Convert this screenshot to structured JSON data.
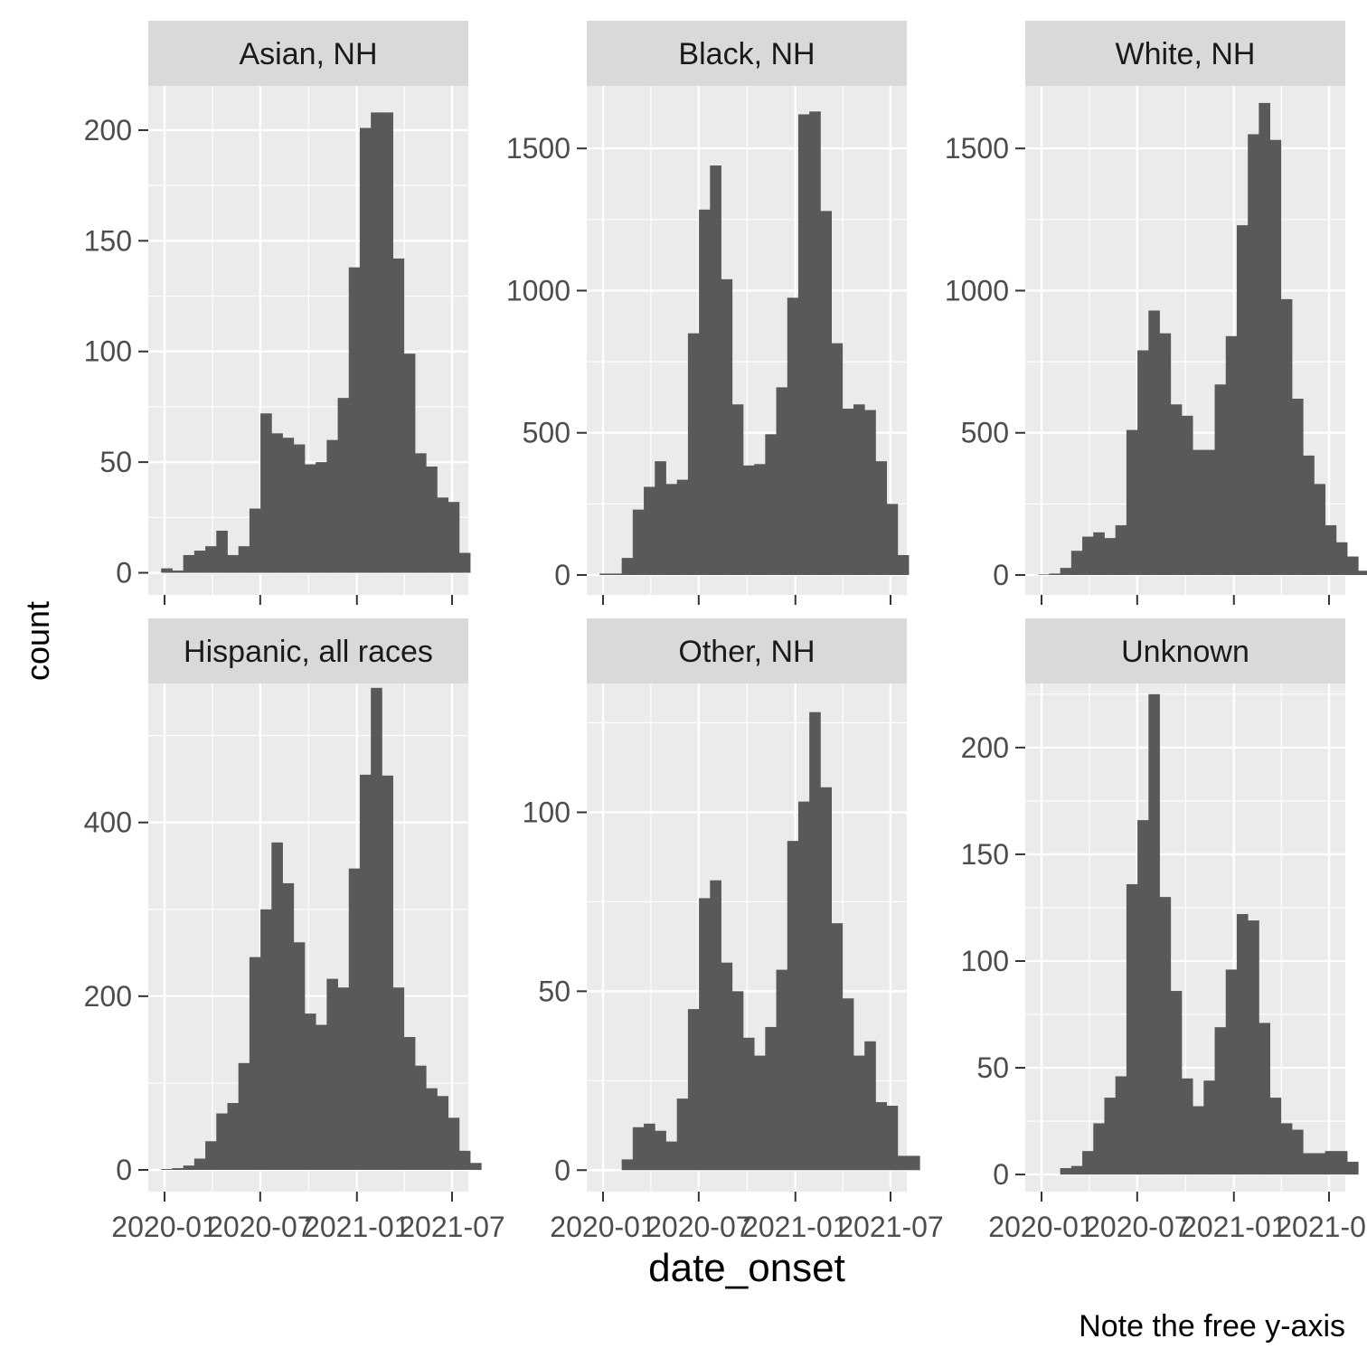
{
  "chart_data": {
    "type": "bar",
    "xlabel": "date_onset",
    "ylabel": "count",
    "caption": "Note the free y-axis",
    "x_tick_labels": [
      "2020-01",
      "2020-07",
      "2021-01",
      "2021-07"
    ],
    "x_ticks": [
      "2020-01-01",
      "2020-07-01",
      "2021-01-01",
      "2021-07-01"
    ],
    "x_range": [
      "2019-12-01",
      "2021-08-01"
    ],
    "bin_width_days": 21,
    "first_bin_center": "2020-01-05",
    "colors": {
      "bar": "#595959",
      "panel": "#ebebeb",
      "strip": "#d9d9d9",
      "grid": "#ffffff",
      "tick_text": "#4d4d4d"
    },
    "panels": [
      {
        "label": "Asian, NH",
        "y_range": [
          -10,
          220
        ],
        "y_ticks": [
          0,
          50,
          100,
          150,
          200
        ],
        "counts": [
          2,
          1,
          8,
          10,
          12,
          19,
          8,
          12,
          29,
          72,
          63,
          61,
          58,
          49,
          50,
          60,
          79,
          138,
          201,
          208,
          208,
          142,
          99,
          54,
          48,
          34,
          32,
          9
        ]
      },
      {
        "label": "Black, NH",
        "y_range": [
          -70,
          1720
        ],
        "y_ticks": [
          0,
          500,
          1000,
          1500
        ],
        "counts": [
          5,
          5,
          60,
          230,
          310,
          400,
          320,
          335,
          850,
          1285,
          1440,
          1040,
          600,
          385,
          390,
          495,
          660,
          975,
          1620,
          1630,
          1280,
          815,
          585,
          600,
          580,
          400,
          250,
          70
        ]
      },
      {
        "label": "White, NH",
        "y_range": [
          -70,
          1720
        ],
        "y_ticks": [
          0,
          500,
          1000,
          1500
        ],
        "counts": [
          2,
          5,
          25,
          85,
          135,
          150,
          130,
          175,
          510,
          790,
          930,
          850,
          600,
          560,
          440,
          440,
          670,
          840,
          1230,
          1550,
          1660,
          1530,
          970,
          620,
          420,
          320,
          175,
          115,
          65,
          15
        ]
      },
      {
        "label": "Hispanic, all races",
        "y_range": [
          -25,
          560
        ],
        "y_ticks": [
          0,
          200,
          400
        ],
        "counts": [
          1,
          2,
          5,
          13,
          33,
          65,
          77,
          123,
          245,
          300,
          377,
          330,
          262,
          180,
          167,
          220,
          210,
          347,
          455,
          555,
          454,
          210,
          153,
          120,
          94,
          85,
          60,
          22,
          8
        ]
      },
      {
        "label": "Other, NH",
        "y_range": [
          -6,
          136
        ],
        "y_ticks": [
          0,
          50,
          100
        ],
        "counts": [
          0,
          0,
          3,
          12,
          13,
          11,
          8,
          20,
          45,
          76,
          81,
          58,
          50,
          37,
          32,
          40,
          56,
          92,
          103,
          128,
          107,
          69,
          48,
          32,
          36,
          19,
          18,
          4,
          4
        ]
      },
      {
        "label": "Unknown",
        "y_range": [
          -8,
          230
        ],
        "y_ticks": [
          0,
          50,
          100,
          150,
          200
        ],
        "counts": [
          0,
          0,
          3,
          4,
          11,
          24,
          36,
          46,
          136,
          166,
          225,
          130,
          86,
          45,
          32,
          44,
          69,
          96,
          122,
          119,
          71,
          36,
          24,
          21,
          10,
          10,
          11,
          11,
          6
        ]
      }
    ]
  }
}
